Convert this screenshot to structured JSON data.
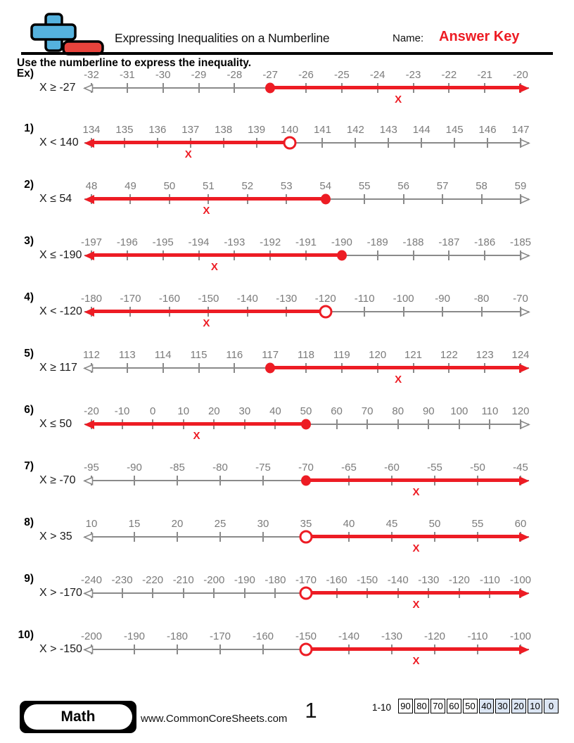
{
  "header": {
    "title": "Expressing Inequalities on a Numberline",
    "name_label": "Name:",
    "answer_key": "Answer Key"
  },
  "instruction": "Use the numberline to express the inequality.",
  "problems": [
    {
      "number_label": "Ex)",
      "inequality": "X ≥ -27",
      "ticks": [
        "-32",
        "-31",
        "-30",
        "-29",
        "-28",
        "-27",
        "-26",
        "-25",
        "-24",
        "-23",
        "-22",
        "-21",
        "-20"
      ],
      "boundary": "-27",
      "boundary_index": 5,
      "circle": "closed",
      "direction": "right",
      "x_marker": "X"
    },
    {
      "number_label": "1)",
      "inequality": "X < 140",
      "ticks": [
        "134",
        "135",
        "136",
        "137",
        "138",
        "139",
        "140",
        "141",
        "142",
        "143",
        "144",
        "145",
        "146",
        "147"
      ],
      "boundary": "140",
      "boundary_index": 6,
      "circle": "open",
      "direction": "left",
      "x_marker": "X"
    },
    {
      "number_label": "2)",
      "inequality": "X ≤ 54",
      "ticks": [
        "48",
        "49",
        "50",
        "51",
        "52",
        "53",
        "54",
        "55",
        "56",
        "57",
        "58",
        "59"
      ],
      "boundary": "54",
      "boundary_index": 6,
      "circle": "closed",
      "direction": "left",
      "x_marker": "X"
    },
    {
      "number_label": "3)",
      "inequality": "X ≤ -190",
      "ticks": [
        "-197",
        "-196",
        "-195",
        "-194",
        "-193",
        "-192",
        "-191",
        "-190",
        "-189",
        "-188",
        "-187",
        "-186",
        "-185"
      ],
      "boundary": "-190",
      "boundary_index": 7,
      "circle": "closed",
      "direction": "left",
      "x_marker": "X"
    },
    {
      "number_label": "4)",
      "inequality": "X < -120",
      "ticks": [
        "-180",
        "-170",
        "-160",
        "-150",
        "-140",
        "-130",
        "-120",
        "-110",
        "-100",
        "-90",
        "-80",
        "-70"
      ],
      "boundary": "-120",
      "boundary_index": 6,
      "circle": "open",
      "direction": "left",
      "x_marker": "X"
    },
    {
      "number_label": "5)",
      "inequality": "X ≥ 117",
      "ticks": [
        "112",
        "113",
        "114",
        "115",
        "116",
        "117",
        "118",
        "119",
        "120",
        "121",
        "122",
        "123",
        "124"
      ],
      "boundary": "117",
      "boundary_index": 5,
      "circle": "closed",
      "direction": "right",
      "x_marker": "X"
    },
    {
      "number_label": "6)",
      "inequality": "X ≤ 50",
      "ticks": [
        "-20",
        "-10",
        "0",
        "10",
        "20",
        "30",
        "40",
        "50",
        "60",
        "70",
        "80",
        "90",
        "100",
        "110",
        "120"
      ],
      "boundary": "50",
      "boundary_index": 7,
      "circle": "closed",
      "direction": "left",
      "x_marker": "X"
    },
    {
      "number_label": "7)",
      "inequality": "X ≥ -70",
      "ticks": [
        "-95",
        "-90",
        "-85",
        "-80",
        "-75",
        "-70",
        "-65",
        "-60",
        "-55",
        "-50",
        "-45"
      ],
      "boundary": "-70",
      "boundary_index": 5,
      "circle": "closed",
      "direction": "right",
      "x_marker": "X"
    },
    {
      "number_label": "8)",
      "inequality": "X > 35",
      "ticks": [
        "10",
        "15",
        "20",
        "25",
        "30",
        "35",
        "40",
        "45",
        "50",
        "55",
        "60"
      ],
      "boundary": "35",
      "boundary_index": 5,
      "circle": "open",
      "direction": "right",
      "x_marker": "X"
    },
    {
      "number_label": "9)",
      "inequality": "X > -170",
      "ticks": [
        "-240",
        "-230",
        "-220",
        "-210",
        "-200",
        "-190",
        "-180",
        "-170",
        "-160",
        "-150",
        "-140",
        "-130",
        "-120",
        "-110",
        "-100"
      ],
      "boundary": "-170",
      "boundary_index": 7,
      "circle": "open",
      "direction": "right",
      "x_marker": "X"
    },
    {
      "number_label": "10)",
      "inequality": "X > -150",
      "ticks": [
        "-200",
        "-190",
        "-180",
        "-170",
        "-160",
        "-150",
        "-140",
        "-130",
        "-120",
        "-110",
        "-100"
      ],
      "boundary": "-150",
      "boundary_index": 5,
      "circle": "open",
      "direction": "right",
      "x_marker": "X"
    }
  ],
  "footer": {
    "subject": "Math",
    "website": "www.CommonCoreSheets.com",
    "page_number": "1",
    "score_label": "1-10",
    "score_cells": [
      {
        "value": "90",
        "shaded": false
      },
      {
        "value": "80",
        "shaded": false
      },
      {
        "value": "70",
        "shaded": false
      },
      {
        "value": "60",
        "shaded": false
      },
      {
        "value": "50",
        "shaded": false
      },
      {
        "value": "40",
        "shaded": true
      },
      {
        "value": "30",
        "shaded": true
      },
      {
        "value": "20",
        "shaded": true
      },
      {
        "value": "10",
        "shaded": true
      },
      {
        "value": "0",
        "shaded": true
      }
    ]
  },
  "colors": {
    "red": "#ed1c24",
    "line_gray": "#8a8a8a",
    "label_gray": "#7b7b7b",
    "logo_blue": "#55b2de",
    "logo_red": "#e8433c",
    "score_shaded": "#dbe5f3"
  }
}
